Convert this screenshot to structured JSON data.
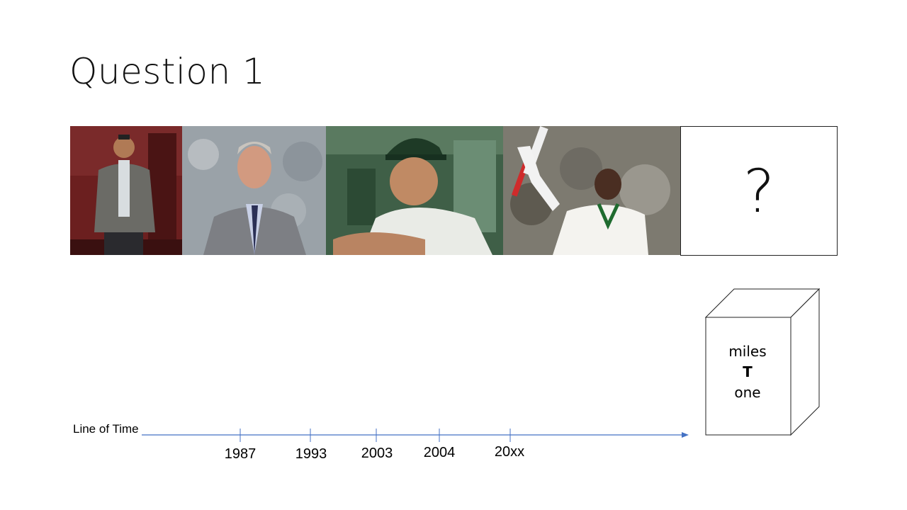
{
  "slide": {
    "title": "Question 1",
    "mystery_symbol": "?"
  },
  "photos": [
    {
      "subject": "man in grey blazer standing"
    },
    {
      "subject": "man in grey suit and tie"
    },
    {
      "subject": "cricketer in green cap"
    },
    {
      "subject": "cricketer raising bat"
    }
  ],
  "timeline": {
    "label": "Line of Time",
    "ticks": [
      "1987",
      "1993",
      "2003",
      "2004",
      "20xx"
    ],
    "axis_color": "#4472c4"
  },
  "cube": {
    "line1": "miles",
    "line2": "T",
    "line3": "one"
  }
}
